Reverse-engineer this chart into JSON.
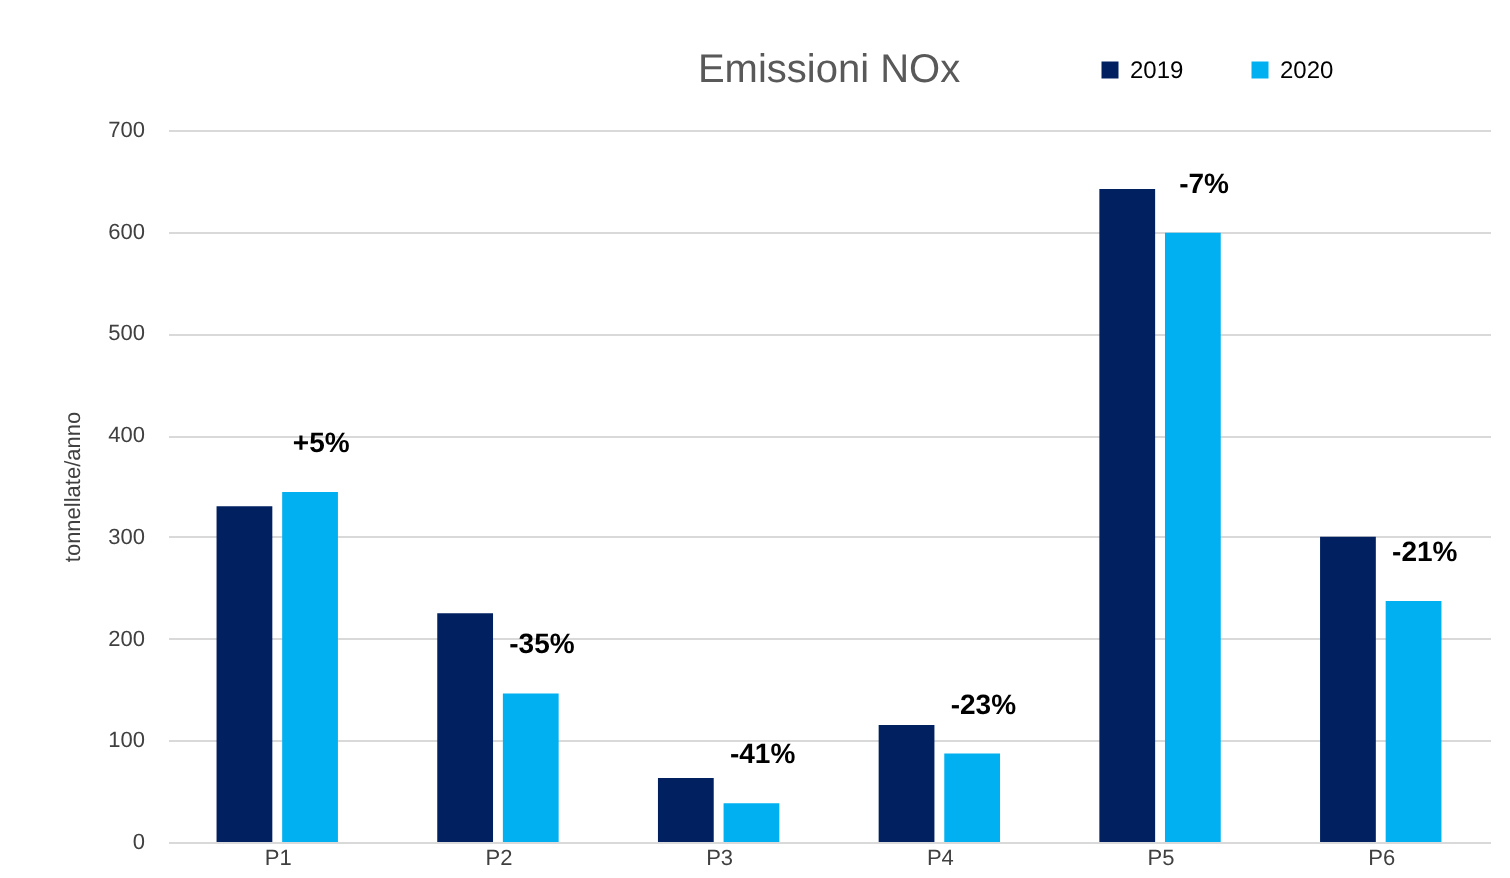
{
  "chart_data": {
    "type": "bar",
    "title": "Emissioni NOx",
    "ylabel": "tonnellate/anno",
    "categories": [
      "P1",
      "P2",
      "P3",
      "P4",
      "P5",
      "P6"
    ],
    "series": [
      {
        "name": "2019",
        "color": "#002060",
        "values": [
          330,
          225,
          63,
          115,
          642,
          300
        ]
      },
      {
        "name": "2020",
        "color": "#00b0f0",
        "values": [
          344,
          146,
          38,
          87,
          599,
          237
        ]
      }
    ],
    "ylim": [
      0,
      700
    ],
    "yticks": [
      0,
      100,
      200,
      300,
      400,
      500,
      600,
      700
    ],
    "grid": "y",
    "legend": "top right",
    "annotations": [
      {
        "text": "+5%",
        "x": "P1",
        "y": 344
      },
      {
        "text": "-35%",
        "x": "P2",
        "y": 146
      },
      {
        "text": "-41%",
        "x": "P3",
        "y": 38
      },
      {
        "text": "-23%",
        "x": "P4",
        "y": 87
      },
      {
        "text": "-7%",
        "x": "P5",
        "y": 599
      },
      {
        "text": "-21%",
        "x": "P6",
        "y": 237
      }
    ]
  }
}
